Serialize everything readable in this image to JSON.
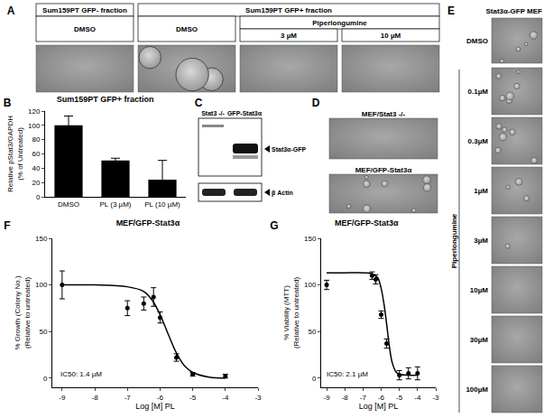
{
  "panels": {
    "A": {
      "panel_label": "A",
      "header_left": "Sum159PT GFP- fraction",
      "header_right": "Sum159PT GFP+ fraction",
      "treatment": "Piperlongumine",
      "columns": [
        "DMSO",
        "DMSO",
        "3 µM",
        "10 µM"
      ]
    },
    "C": {
      "panel_label": "C",
      "lanes": [
        "Stat3 -/-",
        "GFP-Stat3α"
      ],
      "bands": [
        "Stat3α-GFP",
        "β Actin"
      ]
    },
    "D": {
      "panel_label": "D",
      "rows": [
        "MEF/Stat3 -/-",
        "MEF/GFP-Stat3α"
      ]
    },
    "E": {
      "panel_label": "E",
      "title": "Stat3α-GFP MEF",
      "treatment": "Piperlongumine",
      "rows": [
        "DMSO",
        "0.1µM",
        "0.3µM",
        "1µM",
        "3µM",
        "10µM",
        "30µM",
        "100µM"
      ]
    }
  },
  "chart_data": [
    {
      "panel_label": "B",
      "type": "bar",
      "title": "Sum159PT GFP+ fraction",
      "y_label": "Relative pStat3/GAPDH\n(% of Untreated)",
      "categories": [
        "DMSO",
        "PL (3 µM)",
        "PL (10 µM)"
      ],
      "values": [
        100,
        51,
        24
      ],
      "errors": [
        13,
        3,
        27
      ],
      "color": "#000000",
      "ylim": [
        0,
        120
      ],
      "yticks": [
        0,
        20,
        40,
        60,
        80,
        100,
        120
      ],
      "grid": false
    },
    {
      "panel_label": "F",
      "type": "scatter",
      "title": "MEF/GFP-Stat3α",
      "x_label": "Log [M] PL",
      "y_label": "% Growth (Colony No.)\n(Relative to untreated)",
      "x": [
        -9,
        -7,
        -6.5,
        -6.2,
        -6,
        -5.5,
        -5,
        -4
      ],
      "values": [
        100,
        75,
        80,
        87,
        65,
        22,
        4,
        2
      ],
      "errors": [
        15,
        8,
        7,
        10,
        6,
        4,
        2,
        2
      ],
      "fit": {
        "x": [
          -9,
          -8,
          -7,
          -6.5,
          -6.25,
          -6,
          -5.75,
          -5.5,
          -5.25,
          -5,
          -4.5,
          -4
        ],
        "values": [
          100,
          100,
          98,
          93,
          84,
          68,
          47,
          27,
          13,
          6,
          1,
          0
        ]
      },
      "annotation": "IC50: 1.4 µM",
      "color": "#000000",
      "marker": "circle",
      "xlim": [
        -9.3,
        -3
      ],
      "xticks": [
        -9,
        -8,
        -7,
        -6,
        -5,
        -4,
        -3
      ],
      "ylim": [
        -10,
        150
      ],
      "yticks": [
        0,
        50,
        100,
        150
      ],
      "grid": false
    },
    {
      "panel_label": "G",
      "type": "scatter",
      "title": "MEF/GFP-Stat3α",
      "x_label": "Log [M] PL",
      "y_label": "% Viability (MTT)\n(Relative to untreated)",
      "x": [
        -9,
        -6.5,
        -6.3,
        -6,
        -5.7,
        -5,
        -4.5,
        -4
      ],
      "values": [
        100,
        110,
        106,
        68,
        37,
        3,
        5,
        5
      ],
      "errors": [
        5,
        4,
        5,
        4,
        5,
        5,
        6,
        7
      ],
      "fit": {
        "x": [
          -9,
          -8,
          -7,
          -6.5,
          -6.2,
          -6,
          -5.85,
          -5.7,
          -5.55,
          -5.4,
          -5.2,
          -5,
          -4.5,
          -4
        ],
        "values": [
          113,
          113,
          113,
          112,
          108,
          96,
          80,
          58,
          34,
          17,
          7,
          4,
          3,
          3
        ]
      },
      "annotation": "IC50: 2.1 µM",
      "color": "#000000",
      "marker": "circle",
      "xlim": [
        -9.3,
        -3
      ],
      "xticks": [
        -9,
        -8,
        -7,
        -6,
        -5,
        -4,
        -3
      ],
      "ylim": [
        -10,
        150
      ],
      "yticks": [
        0,
        50,
        100,
        150
      ],
      "grid": false
    }
  ]
}
